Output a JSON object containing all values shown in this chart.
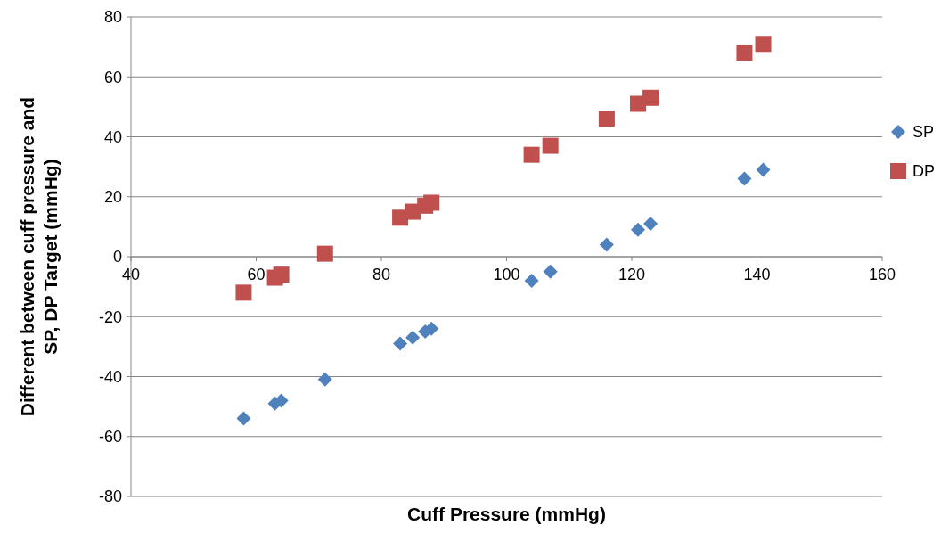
{
  "chart_data": {
    "type": "scatter",
    "xlabel": "Cuff Pressure (mmHg)",
    "ylabel": "Different between cuff pressure and SP, DP Target (mmHg)",
    "xlim": [
      40,
      160
    ],
    "xticks": [
      40,
      60,
      80,
      100,
      120,
      140,
      160
    ],
    "ylim": [
      -80,
      80
    ],
    "yticks": [
      -80,
      -60,
      -40,
      -20,
      0,
      20,
      40,
      60,
      80
    ],
    "grid": "y",
    "legend": "right",
    "series": [
      {
        "name": "SP",
        "color": "#4f81bd",
        "marker": "diamond",
        "x": [
          58,
          63,
          64,
          71,
          83,
          85,
          87,
          88,
          104,
          107,
          116,
          121,
          123,
          138,
          141
        ],
        "values": [
          -54,
          -49,
          -48,
          -41,
          -29,
          -27,
          -25,
          -24,
          -8,
          -5,
          4,
          9,
          11,
          26,
          29
        ]
      },
      {
        "name": "DP",
        "color": "#c0504d",
        "marker": "square",
        "x": [
          58,
          63,
          64,
          71,
          83,
          85,
          87,
          88,
          104,
          107,
          116,
          121,
          123,
          138,
          141
        ],
        "values": [
          -12,
          -7,
          -6,
          1,
          13,
          15,
          17,
          18,
          34,
          37,
          46,
          51,
          53,
          68,
          71
        ]
      }
    ]
  }
}
